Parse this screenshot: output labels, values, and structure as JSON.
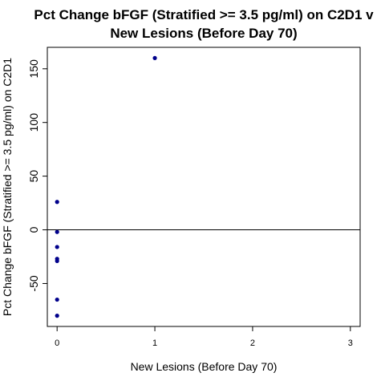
{
  "chart_data": {
    "type": "scatter",
    "title_lines": [
      "Pct Change bFGF (Stratified >= 3.5 pg/ml) on C2D1 v",
      "New Lesions (Before Day 70)"
    ],
    "xlabel": "New Lesions (Before Day 70)",
    "ylabel": "Pct Change bFGF (Stratified >= 3.5 pg/ml) on C2D1",
    "xlim": [
      -0.1,
      3.1
    ],
    "ylim": [
      -90,
      170
    ],
    "x_ticks": [
      0,
      1,
      2,
      3
    ],
    "y_ticks": [
      -50,
      0,
      50,
      100,
      150
    ],
    "reference_line_y": 0,
    "grid": false,
    "point_color": "#00008B",
    "points": [
      {
        "x": 1,
        "y": 160
      },
      {
        "x": 0,
        "y": 26
      },
      {
        "x": 0,
        "y": -2
      },
      {
        "x": 0,
        "y": -16
      },
      {
        "x": 0,
        "y": -27
      },
      {
        "x": 0,
        "y": -29
      },
      {
        "x": 0,
        "y": -65
      },
      {
        "x": 0,
        "y": -80
      }
    ]
  }
}
